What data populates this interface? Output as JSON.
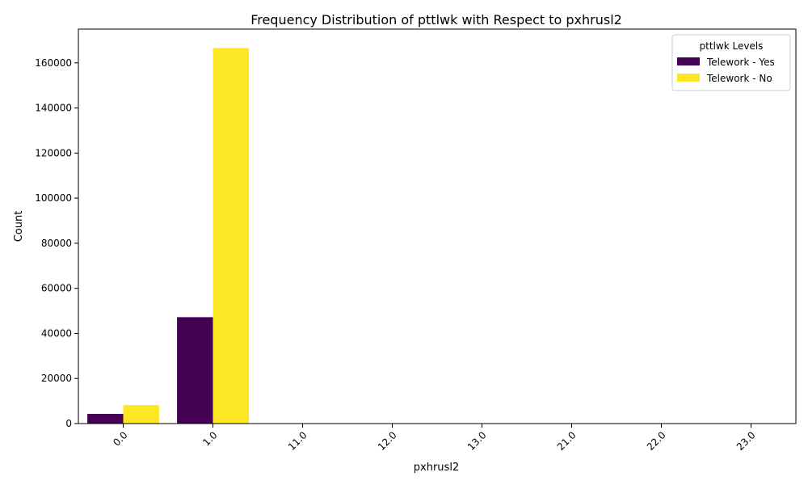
{
  "chart_data": {
    "type": "bar",
    "title": "Frequency Distribution of pttlwk with Respect to pxhrusl2",
    "xlabel": "pxhrusl2",
    "ylabel": "Count",
    "categories": [
      "0.0",
      "1.0",
      "11.0",
      "12.0",
      "13.0",
      "21.0",
      "22.0",
      "23.0"
    ],
    "ylim": [
      0,
      175000
    ],
    "yticks": [
      0,
      20000,
      40000,
      60000,
      80000,
      100000,
      120000,
      140000,
      160000
    ],
    "series": [
      {
        "name": "Telework - Yes",
        "color": "#440154",
        "values": [
          4300,
          47200,
          0,
          0,
          0,
          0,
          0,
          0
        ]
      },
      {
        "name": "Telework - No",
        "color": "#fde725",
        "values": [
          8200,
          166600,
          0,
          0,
          0,
          0,
          0,
          0
        ]
      }
    ],
    "legend": {
      "title": "pttlwk Levels",
      "placement": "top-right"
    },
    "grid": false
  }
}
